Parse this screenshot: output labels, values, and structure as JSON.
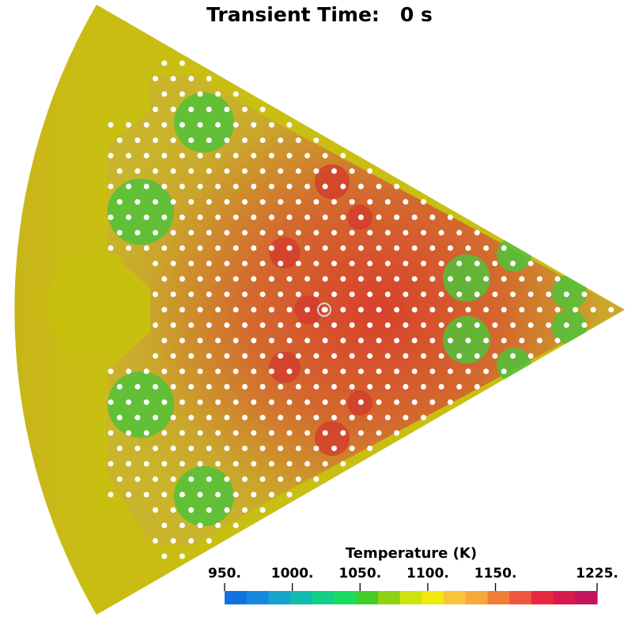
{
  "title": {
    "label": "Transient Time:",
    "value": "0 s"
  },
  "colorbar": {
    "title": "Temperature (K)",
    "ticks": [
      "950.",
      "1000.",
      "1050.",
      "1100.",
      "1150.",
      "1225."
    ],
    "range": [
      950,
      1225
    ],
    "colors": [
      "#0f72e0",
      "#1688dd",
      "#16a3cd",
      "#11bcae",
      "#12d087",
      "#1cdb63",
      "#42cc2a",
      "#8fd114",
      "#cfe10f",
      "#f2e90c",
      "#f9c33c",
      "#f5a93a",
      "#f07e36",
      "#ef5740",
      "#e7283f",
      "#d71a4d",
      "#c2155a"
    ]
  },
  "view": {
    "field_colors": {
      "reflector": "#c9bf12",
      "hot": "#d33a2c",
      "warm": "#d0772d",
      "mild": "#c9b52b",
      "cool": "#50c239"
    },
    "pin_color": "#ffffff",
    "probe_marker": "circle"
  }
}
